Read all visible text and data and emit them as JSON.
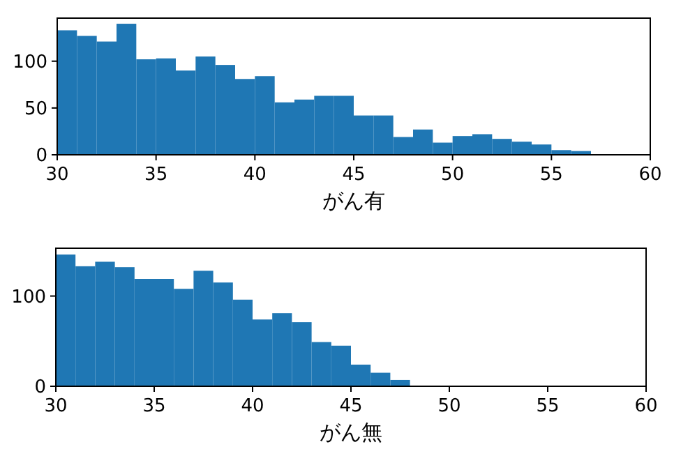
{
  "chart_data": [
    {
      "type": "histogram",
      "xlabel": "がん有",
      "color": "#1f77b4",
      "bins": [
        30,
        31,
        32,
        33,
        34,
        35,
        36,
        37,
        38,
        39,
        40,
        41,
        42,
        43,
        44,
        45,
        46,
        47,
        48,
        49,
        50,
        51,
        52,
        53,
        54,
        55,
        56,
        57
      ],
      "values": [
        133,
        127,
        121,
        140,
        102,
        103,
        90,
        105,
        96,
        81,
        84,
        56,
        59,
        63,
        63,
        42,
        42,
        19,
        27,
        13,
        20,
        22,
        17,
        14,
        11,
        5,
        4
      ],
      "xlim": [
        30,
        60
      ],
      "ylim": [
        0,
        146
      ],
      "xticks": [
        30,
        35,
        40,
        45,
        50,
        55,
        60
      ],
      "yticks": [
        0,
        50,
        100
      ]
    },
    {
      "type": "histogram",
      "xlabel": "がん無",
      "color": "#1f77b4",
      "bins": [
        30,
        31,
        32,
        33,
        34,
        35,
        36,
        37,
        38,
        39,
        40,
        41,
        42,
        43,
        44,
        45,
        46,
        47,
        48
      ],
      "values": [
        146,
        133,
        138,
        132,
        119,
        119,
        108,
        128,
        115,
        96,
        74,
        81,
        71,
        49,
        45,
        24,
        15,
        7
      ],
      "xlim": [
        30,
        60
      ],
      "ylim": [
        0,
        153
      ],
      "xticks": [
        30,
        35,
        40,
        45,
        50,
        55,
        60
      ],
      "yticks": [
        0,
        100
      ]
    }
  ]
}
